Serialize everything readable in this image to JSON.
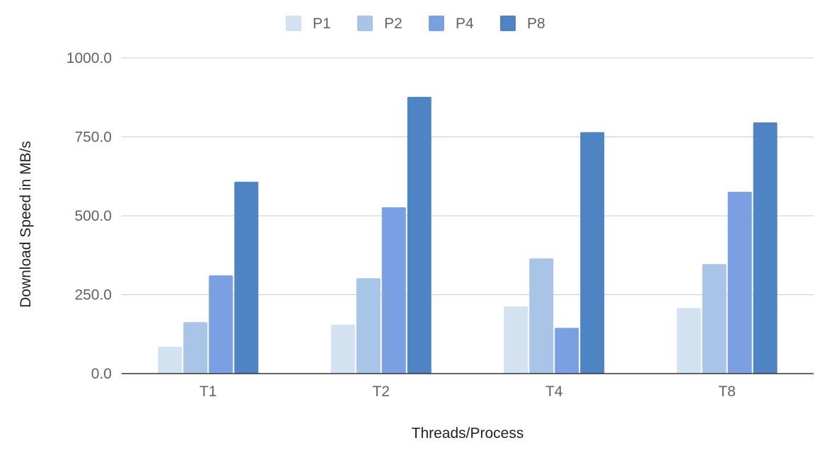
{
  "chart_data": {
    "type": "bar",
    "title": "",
    "xlabel": "Threads/Process",
    "ylabel": "Download Speed in MB/s",
    "categories": [
      "T1",
      "T2",
      "T4",
      "T8"
    ],
    "series": [
      {
        "name": "P1",
        "color": "#d3e2f1",
        "values": [
          85,
          155,
          213,
          208
        ]
      },
      {
        "name": "P2",
        "color": "#a8c5e7",
        "values": [
          163,
          302,
          365,
          347
        ]
      },
      {
        "name": "P4",
        "color": "#7a9fe3",
        "values": [
          311,
          527,
          145,
          576
        ]
      },
      {
        "name": "P8",
        "color": "#4e84c4",
        "values": [
          608,
          877,
          765,
          796
        ]
      }
    ],
    "ylim": [
      0,
      1000
    ],
    "yticks": [
      0,
      250,
      500,
      750,
      1000
    ],
    "ytick_labels": [
      "0.0",
      "250.0",
      "500.0",
      "750.0",
      "1000.0"
    ],
    "grid": true,
    "legend": "top-center"
  }
}
